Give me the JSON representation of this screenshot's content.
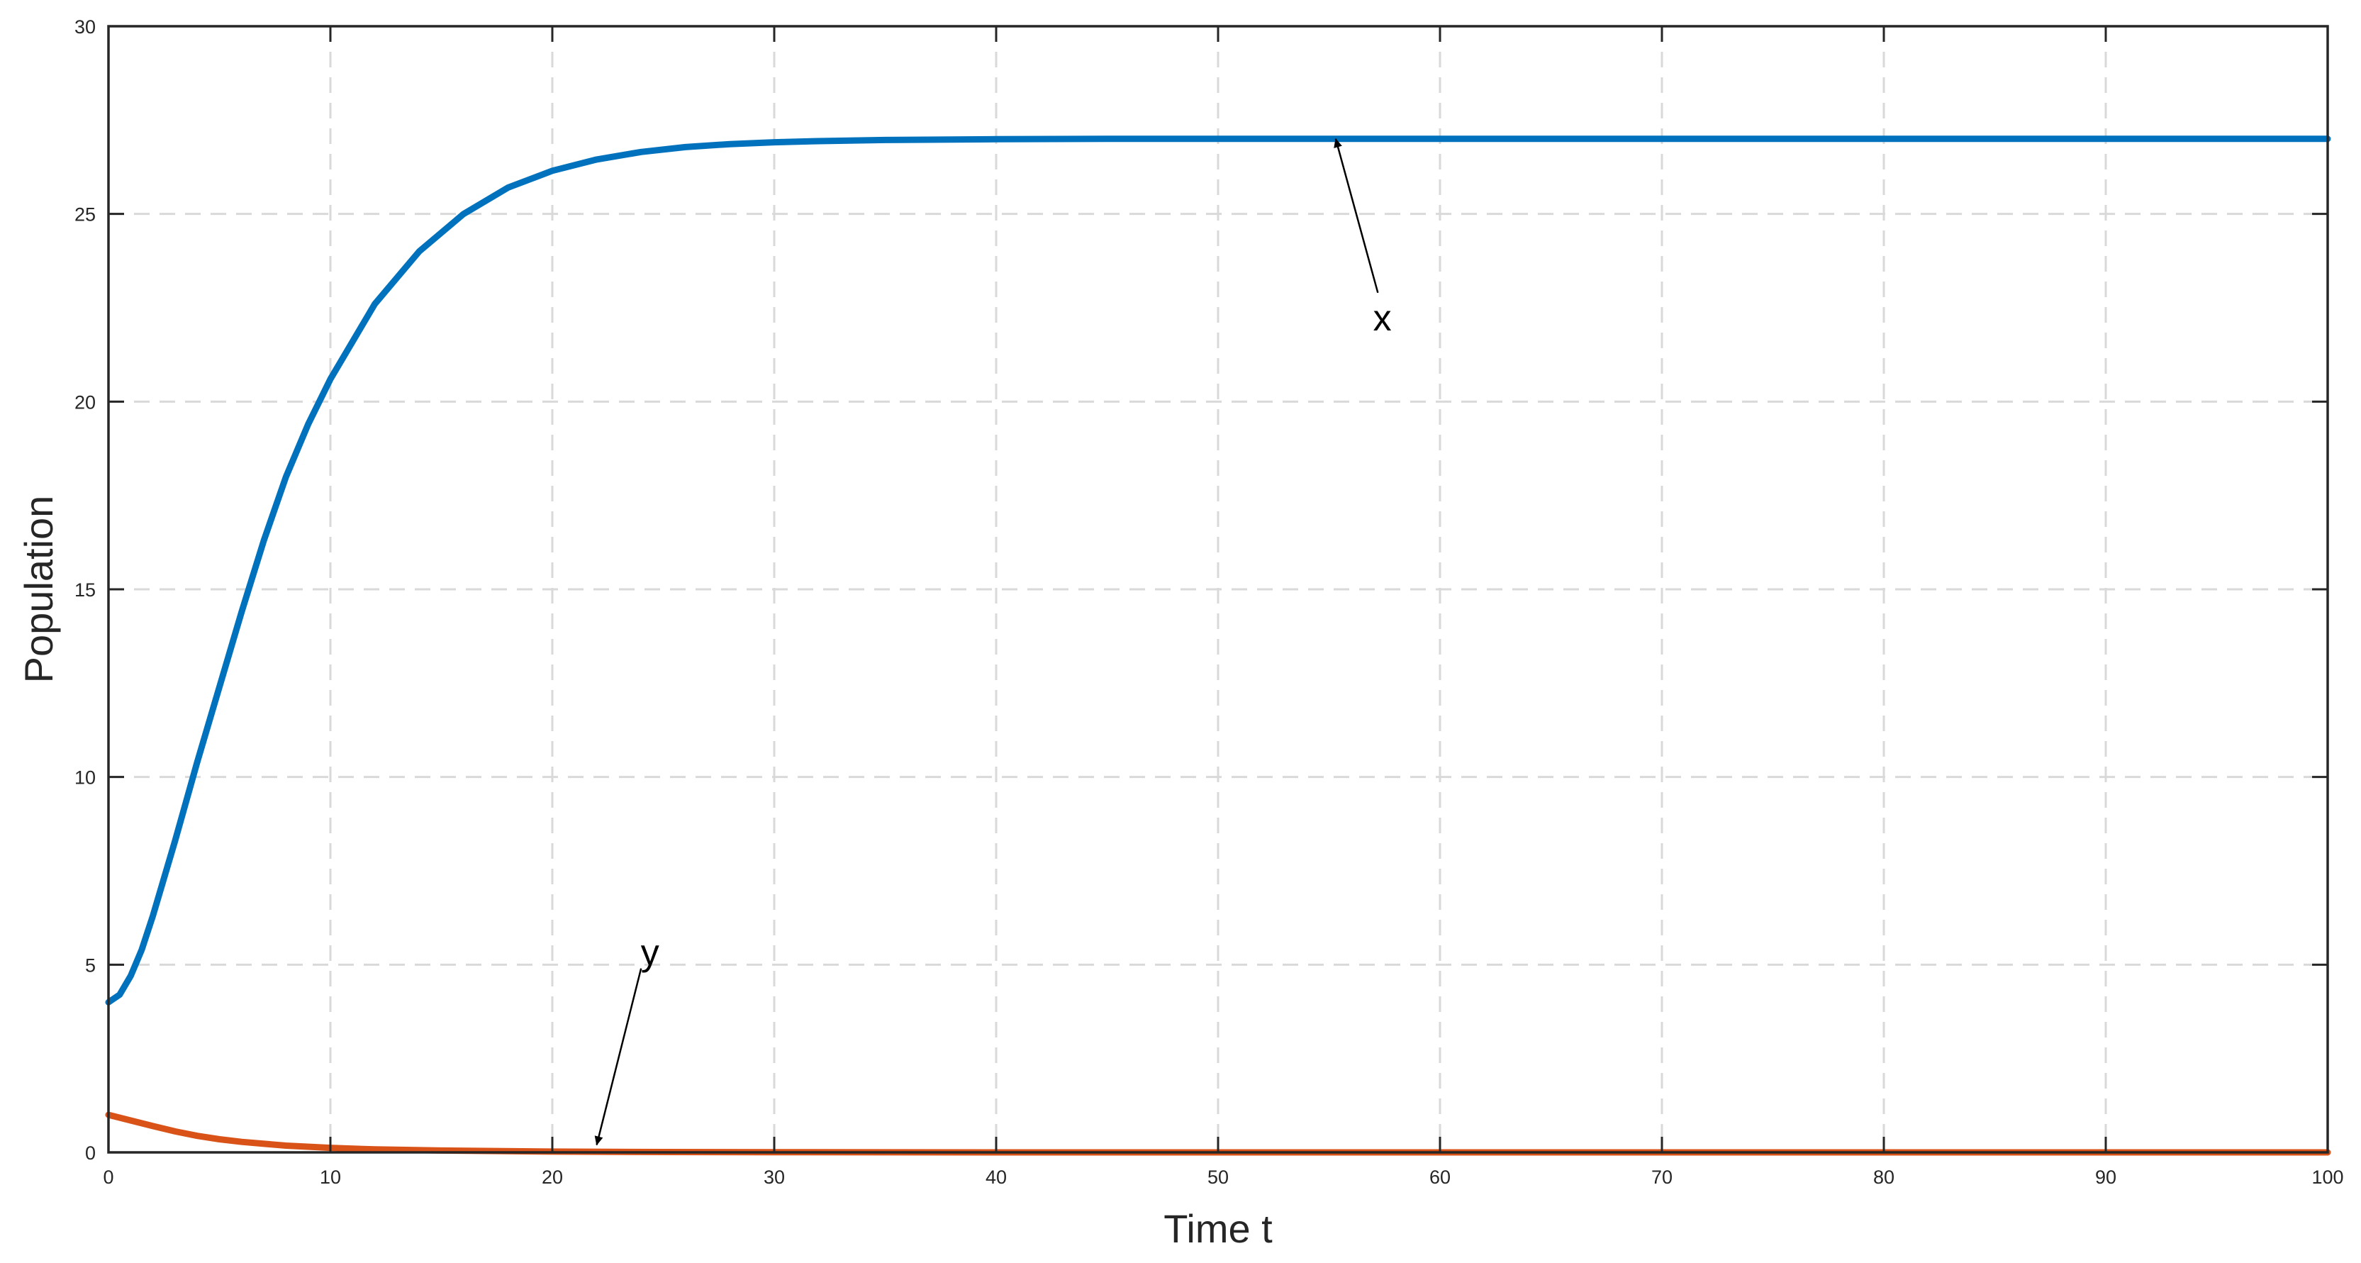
{
  "chart_data": {
    "type": "line",
    "title": "",
    "xlabel": "Time t",
    "ylabel": "Population",
    "xlim": [
      0,
      100
    ],
    "ylim": [
      0,
      30
    ],
    "xticks": [
      0,
      10,
      20,
      30,
      40,
      50,
      60,
      70,
      80,
      90,
      100
    ],
    "yticks": [
      0,
      5,
      10,
      15,
      20,
      25,
      30
    ],
    "grid": true,
    "legend": "none",
    "series": [
      {
        "name": "x",
        "color": "#0072BD",
        "x": [
          0,
          0.5,
          1,
          1.5,
          2,
          3,
          4,
          5,
          6,
          7,
          8,
          9,
          10,
          12,
          14,
          16,
          18,
          20,
          22,
          24,
          26,
          28,
          30,
          32,
          35,
          40,
          45,
          50,
          60,
          70,
          80,
          90,
          100
        ],
        "y": [
          4.0,
          4.2,
          4.7,
          5.4,
          6.3,
          8.3,
          10.4,
          12.4,
          14.4,
          16.3,
          18.0,
          19.4,
          20.6,
          22.6,
          24.0,
          25.0,
          25.7,
          26.15,
          26.45,
          26.65,
          26.78,
          26.86,
          26.91,
          26.94,
          26.97,
          26.99,
          27.0,
          27.0,
          27.0,
          27.0,
          27.0,
          27.0,
          27.0
        ]
      },
      {
        "name": "y",
        "color": "#D95319",
        "x": [
          0,
          1,
          2,
          3,
          4,
          5,
          6,
          8,
          10,
          12,
          15,
          20,
          25,
          30,
          40,
          50,
          60,
          70,
          80,
          90,
          100
        ],
        "y": [
          1.0,
          0.85,
          0.7,
          0.56,
          0.44,
          0.35,
          0.28,
          0.18,
          0.12,
          0.08,
          0.05,
          0.02,
          0.01,
          0.005,
          0.0,
          0.0,
          0.0,
          0.0,
          0.0,
          0.0,
          0.0
        ]
      }
    ],
    "annotations": [
      {
        "text": "x",
        "arrow_to": [
          55.3,
          27.0
        ],
        "arrow_from": [
          57.2,
          22.9
        ],
        "text_at": [
          57.4,
          21.9
        ]
      },
      {
        "text": "y",
        "arrow_to": [
          22.0,
          0.2
        ],
        "arrow_from": [
          24.0,
          4.9
        ],
        "text_at": [
          24.4,
          5.0
        ]
      }
    ]
  }
}
